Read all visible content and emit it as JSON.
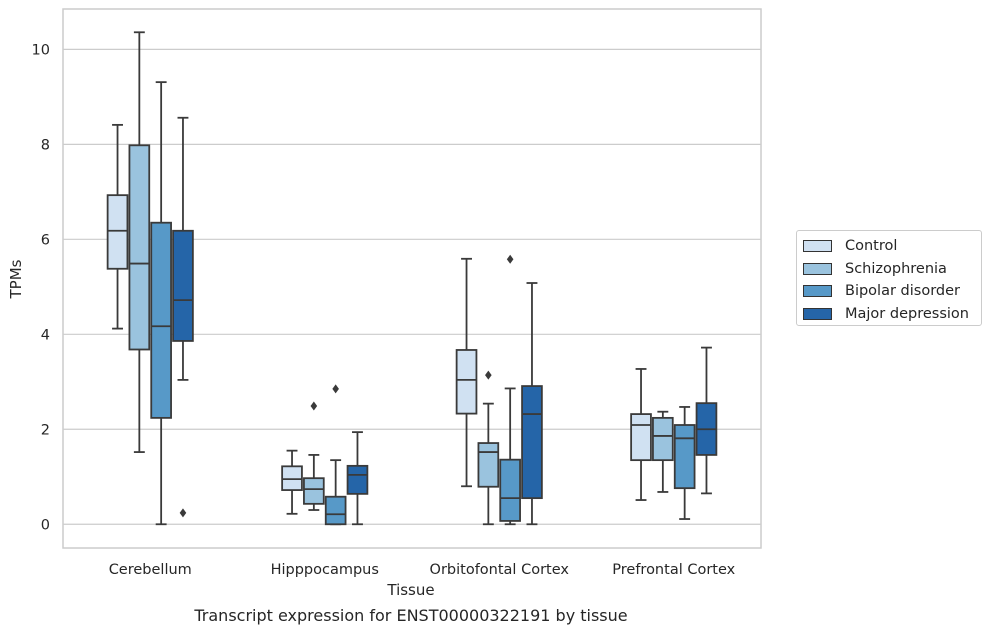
{
  "chart_data": {
    "type": "boxplot",
    "title": "",
    "caption": "Transcript expression for ENST00000322191 by tissue",
    "xlabel": "Tissue",
    "ylabel": "TPMs",
    "ylim": [
      -0.5,
      10.85
    ],
    "yticks": [
      0,
      2,
      4,
      6,
      8,
      10
    ],
    "grid": "horizontal",
    "legend_position": "right",
    "categories": [
      "Cerebellum",
      "Hipppocampus",
      "Orbitofontal Cortex",
      "Prefrontal Cortex"
    ],
    "series": [
      {
        "name": "Control",
        "color": "#d0e1f2",
        "boxes": [
          {
            "whislo": 4.12,
            "q1": 5.38,
            "med": 6.18,
            "q3": 6.93,
            "whishi": 8.41,
            "fliers": []
          },
          {
            "whislo": 0.22,
            "q1": 0.72,
            "med": 0.95,
            "q3": 1.22,
            "whishi": 1.55,
            "fliers": []
          },
          {
            "whislo": 0.8,
            "q1": 2.33,
            "med": 3.04,
            "q3": 3.67,
            "whishi": 5.59,
            "fliers": []
          },
          {
            "whislo": 0.51,
            "q1": 1.35,
            "med": 2.09,
            "q3": 2.32,
            "whishi": 3.27,
            "fliers": []
          }
        ]
      },
      {
        "name": "Schizophrenia",
        "color": "#9ac3de",
        "boxes": [
          {
            "whislo": 1.52,
            "q1": 3.68,
            "med": 5.49,
            "q3": 7.98,
            "whishi": 10.36,
            "fliers": []
          },
          {
            "whislo": 0.3,
            "q1": 0.43,
            "med": 0.74,
            "q3": 0.97,
            "whishi": 1.46,
            "fliers": [
              2.49
            ]
          },
          {
            "whislo": 0.0,
            "q1": 0.79,
            "med": 1.52,
            "q3": 1.71,
            "whishi": 2.54,
            "fliers": [
              3.14
            ]
          },
          {
            "whislo": 0.68,
            "q1": 1.35,
            "med": 1.86,
            "q3": 2.24,
            "whishi": 2.37,
            "fliers": []
          }
        ]
      },
      {
        "name": "Bipolar disorder",
        "color": "#5799c8",
        "boxes": [
          {
            "whislo": 0.0,
            "q1": 2.24,
            "med": 4.17,
            "q3": 6.35,
            "whishi": 9.31,
            "fliers": []
          },
          {
            "whislo": 0.0,
            "q1": 0.0,
            "med": 0.21,
            "q3": 0.58,
            "whishi": 1.35,
            "fliers": [
              2.85
            ]
          },
          {
            "whislo": 0.0,
            "q1": 0.07,
            "med": 0.55,
            "q3": 1.36,
            "whishi": 2.86,
            "fliers": [
              5.58
            ]
          },
          {
            "whislo": 0.11,
            "q1": 0.76,
            "med": 1.81,
            "q3": 2.09,
            "whishi": 2.47,
            "fliers": []
          }
        ]
      },
      {
        "name": "Major depression",
        "color": "#2565a8",
        "boxes": [
          {
            "whislo": 3.04,
            "q1": 3.86,
            "med": 4.72,
            "q3": 6.18,
            "whishi": 8.56,
            "fliers": [
              0.24
            ]
          },
          {
            "whislo": 0.0,
            "q1": 0.64,
            "med": 1.04,
            "q3": 1.23,
            "whishi": 1.94,
            "fliers": []
          },
          {
            "whislo": 0.0,
            "q1": 0.55,
            "med": 2.32,
            "q3": 2.91,
            "whishi": 5.08,
            "fliers": []
          },
          {
            "whislo": 0.65,
            "q1": 1.46,
            "med": 2.0,
            "q3": 2.55,
            "whishi": 3.72,
            "fliers": []
          }
        ]
      }
    ]
  }
}
